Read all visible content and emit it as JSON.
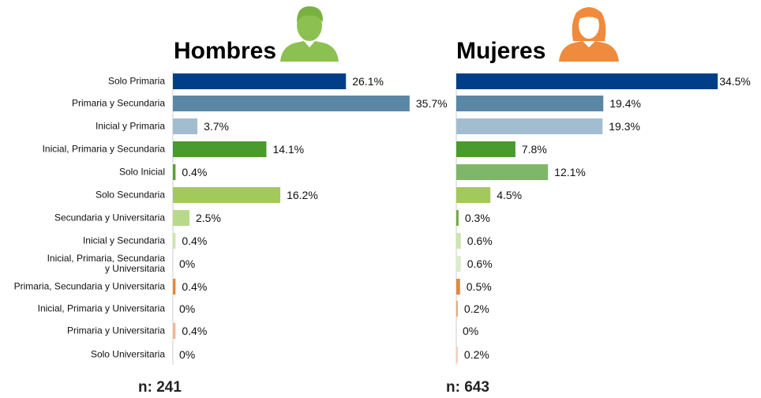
{
  "chart_data": [
    {
      "type": "barh",
      "title": "Hombres",
      "footnote": "n: 241",
      "categories": [
        "Solo Primaria",
        "Primaria y Secundaria",
        "Inicial y Primaria",
        "Inicial, Primaria y Secundaria",
        "Solo Inicial",
        "Solo Secundaria",
        "Secundaria y Universitaria",
        "Inicial y Secundaria",
        "Inicial, Primaria, Secundaria\ny Universitaria",
        "Primaria, Secundaria y Universitaria",
        "Inicial, Primaria y Universitaria",
        "Primaria y Universitaria",
        "Solo Universitaria"
      ],
      "values": [
        26.1,
        35.7,
        3.7,
        14.1,
        0.4,
        16.2,
        2.5,
        0.4,
        0,
        0.4,
        0,
        0.4,
        0
      ],
      "value_labels": [
        "26.1%",
        "35.7%",
        "3.7%",
        "14.1%",
        "0.4%",
        "16.2%",
        "2.5%",
        "0.4%",
        "0%",
        "0.4%",
        "0%",
        "0.4%",
        "0%"
      ],
      "colors": [
        "#003f87",
        "#5b87a6",
        "#a3bdd0",
        "#4a9a2e",
        "#5aa03a",
        "#a3c95c",
        "#b8d98a",
        "#cde5b0",
        "#dcebc9",
        "#e08a3c",
        "#eda870",
        "#f0b894",
        "#f5cdb8"
      ]
    },
    {
      "type": "barh",
      "title": "Mujeres",
      "footnote": "n: 643",
      "values": [
        34.5,
        19.4,
        19.3,
        7.8,
        12.1,
        4.5,
        0.3,
        0.6,
        0.6,
        0.5,
        0.2,
        0,
        0.2
      ],
      "value_labels": [
        "34.5%",
        "19.4%",
        "19.3%",
        "7.8%",
        "12.1%",
        "4.5%",
        "0.3%",
        "0.6%",
        "0.6%",
        "0.5%",
        "0.2%",
        "0%",
        "0.2%"
      ],
      "colors": [
        "#003f87",
        "#5b87a6",
        "#a3bdd0",
        "#4a9a2e",
        "#7fb76a",
        "#a3c95c",
        "#6faa3e",
        "#cde5b0",
        "#dcebc9",
        "#e08a3c",
        "#eda870",
        "#f0b894",
        "#f5cdb8"
      ]
    }
  ]
}
